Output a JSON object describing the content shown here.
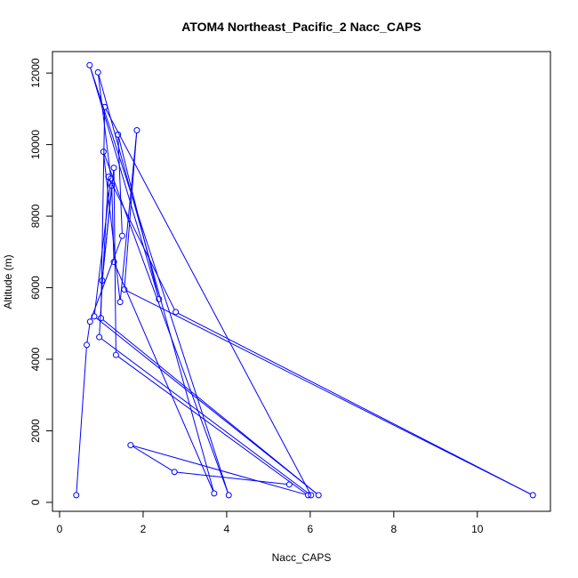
{
  "chart_data": {
    "type": "line",
    "title": "ATOM4 Northeast_Pacific_2 Nacc_CAPS",
    "xlabel": "Nacc_CAPS",
    "ylabel": "Altitude (m)",
    "xlim": [
      -0.17,
      11.75
    ],
    "ylim": [
      -250,
      12600
    ],
    "x_ticks": [
      0,
      2,
      4,
      6,
      8,
      10
    ],
    "y_ticks": [
      0,
      2000,
      4000,
      6000,
      8000,
      10000,
      12000
    ],
    "grid": false,
    "legend": "none",
    "series_color": "#0000ff",
    "series": [
      {
        "points": [
          {
            "x": 0.4,
            "y": 200
          },
          {
            "x": 0.65,
            "y": 4400
          },
          {
            "x": 0.73,
            "y": 5050
          },
          {
            "x": 1.5,
            "y": 7450
          },
          {
            "x": 1.4,
            "y": 10280
          },
          {
            "x": 2.38,
            "y": 5680
          },
          {
            "x": 0.72,
            "y": 12220
          },
          {
            "x": 4.05,
            "y": 200
          },
          {
            "x": 1.05,
            "y": 9800
          },
          {
            "x": 1.45,
            "y": 5600
          },
          {
            "x": 1.85,
            "y": 10400
          },
          {
            "x": 1.55,
            "y": 5950
          },
          {
            "x": 11.33,
            "y": 200
          },
          {
            "x": 2.78,
            "y": 5320
          },
          {
            "x": 1.17,
            "y": 9100
          },
          {
            "x": 0.95,
            "y": 4620
          },
          {
            "x": 6.02,
            "y": 200
          },
          {
            "x": 1.08,
            "y": 11050
          },
          {
            "x": 0.99,
            "y": 5150
          },
          {
            "x": 6.2,
            "y": 200
          },
          {
            "x": 0.83,
            "y": 5200
          },
          {
            "x": 1.23,
            "y": 9050
          },
          {
            "x": 0.92,
            "y": 12020
          },
          {
            "x": 3.7,
            "y": 250
          },
          {
            "x": 1.3,
            "y": 6720
          },
          {
            "x": 1.25,
            "y": 8850
          },
          {
            "x": 1.02,
            "y": 6200
          },
          {
            "x": 1.3,
            "y": 9350
          },
          {
            "x": 1.35,
            "y": 4120
          },
          {
            "x": 5.95,
            "y": 200
          },
          {
            "x": 1.7,
            "y": 1600
          },
          {
            "x": 2.75,
            "y": 850
          },
          {
            "x": 5.5,
            "y": 500
          }
        ]
      }
    ]
  }
}
